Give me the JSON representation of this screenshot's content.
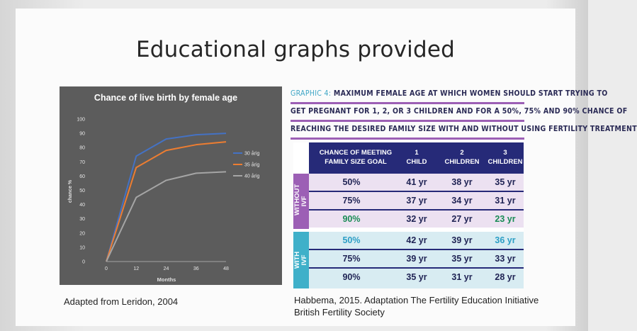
{
  "slide": {
    "title": "Educational graphs provided"
  },
  "captions": {
    "left": "Adapted from Leridon, 2004",
    "right_line1": "Habbema, 2015. Adaptation The Fertility Education Initiative",
    "right_line2": "British Fertility Society"
  },
  "colors": {
    "purple": "#9c5fb5",
    "teal": "#3fb0c9",
    "navy": "#262a78",
    "green": "#1a8c56"
  },
  "chart_data": {
    "type": "line",
    "title": "Chance of live birth by female age",
    "xlabel": "Months",
    "ylabel": "chance %",
    "x": [
      0,
      12,
      24,
      36,
      48
    ],
    "ylim": [
      0,
      100
    ],
    "yticks": [
      "0",
      "10",
      "20",
      "30",
      "40",
      "50",
      "60",
      "70",
      "80",
      "90",
      "100"
    ],
    "xticks": [
      "0",
      "12",
      "24",
      "36",
      "48"
    ],
    "legend_placement": "right",
    "series": [
      {
        "name": "30 årig",
        "color": "#4472c4",
        "values": [
          0,
          74,
          86,
          89,
          90
        ]
      },
      {
        "name": "35 årig",
        "color": "#ed7d31",
        "values": [
          0,
          66,
          78,
          82,
          84
        ]
      },
      {
        "name": "40 årig",
        "color": "#a5a5a5",
        "values": [
          0,
          45,
          57,
          62,
          63
        ]
      }
    ]
  },
  "graphic": {
    "title_prefix": "GRAPHIC 4:",
    "title_line1": " MAXIMUM FEMALE AGE AT WHICH WOMEN SHOULD START TRYING TO",
    "title_line2": "GET PREGNANT FOR 1, 2, OR 3 CHILDREN AND FOR A 50%, 75% AND 90% CHANCE OF",
    "title_line3": "REACHING THE DESIRED FAMILY SIZE WITH AND WITHOUT USING FERTILITY TREATMENT",
    "header": {
      "goal": "CHANCE OF MEETING FAMILY SIZE GOAL",
      "col1_num": "1",
      "col1_label": "CHILD",
      "col2_num": "2",
      "col2_label": "CHILDREN",
      "col3_num": "3",
      "col3_label": "CHILDREN"
    },
    "groups": {
      "without": "WITHOUT IVF",
      "with": "WITH IVF"
    },
    "rows": [
      {
        "pct": "50%",
        "c1": "41 yr",
        "c2": "38 yr",
        "c3": "35 yr"
      },
      {
        "pct": "75%",
        "c1": "37 yr",
        "c2": "34 yr",
        "c3": "31 yr"
      },
      {
        "pct": "90%",
        "c1": "32 yr",
        "c2": "27 yr",
        "c3": "23 yr"
      },
      {
        "pct": "50%",
        "c1": "42 yr",
        "c2": "39 yr",
        "c3": "36 yr"
      },
      {
        "pct": "75%",
        "c1": "39 yr",
        "c2": "35 yr",
        "c3": "33 yr"
      },
      {
        "pct": "90%",
        "c1": "35 yr",
        "c2": "31 yr",
        "c3": "28 yr"
      }
    ]
  }
}
